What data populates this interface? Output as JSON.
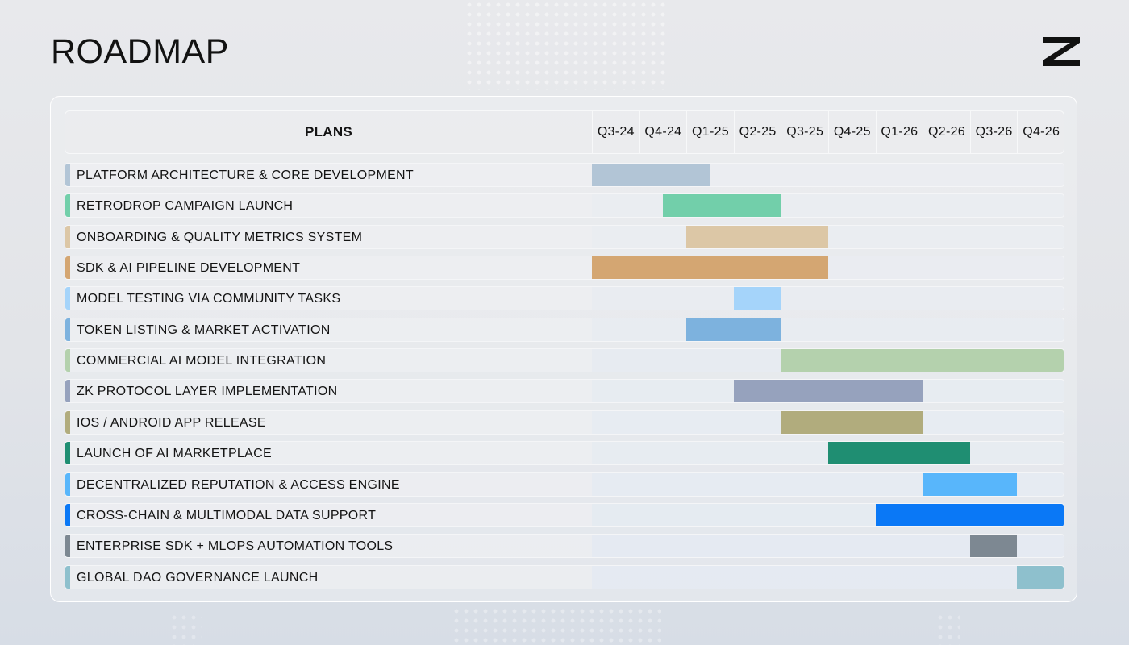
{
  "page": {
    "title": "ROADMAP"
  },
  "logo": {
    "icon": "z-logo-icon"
  },
  "chart_data": {
    "type": "gantt",
    "header": "PLANS",
    "quarters": [
      "Q3-24",
      "Q4-24",
      "Q1-25",
      "Q2-25",
      "Q3-25",
      "Q4-25",
      "Q1-26",
      "Q2-26",
      "Q3-26",
      "Q4-26"
    ],
    "tasks": [
      {
        "label": "PLATFORM ARCHITECTURE & CORE DEVELOPMENT",
        "start": 0,
        "end": 2.5,
        "color": "#b2c5d6"
      },
      {
        "label": "RETRODROP CAMPAIGN LAUNCH",
        "start": 1.5,
        "end": 4,
        "color": "#72cfaa"
      },
      {
        "label": "ONBOARDING & QUALITY METRICS SYSTEM",
        "start": 2,
        "end": 5,
        "color": "#dcc7a6"
      },
      {
        "label": "SDK & AI PIPELINE DEVELOPMENT",
        "start": 0,
        "end": 5,
        "color": "#d4a672"
      },
      {
        "label": "MODEL TESTING VIA COMMUNITY TASKS",
        "start": 3,
        "end": 4,
        "color": "#a5d4fa"
      },
      {
        "label": "TOKEN LISTING & MARKET ACTIVATION",
        "start": 2,
        "end": 4,
        "color": "#7db2de"
      },
      {
        "label": "COMMERCIAL AI MODEL INTEGRATION",
        "start": 4,
        "end": 10,
        "color": "#b4d1ad"
      },
      {
        "label": "ZK PROTOCOL LAYER IMPLEMENTATION",
        "start": 3,
        "end": 7,
        "color": "#96a2bd"
      },
      {
        "label": "IOS / ANDROID APP RELEASE",
        "start": 4,
        "end": 7,
        "color": "#b1ac7d"
      },
      {
        "label": "LAUNCH OF AI MARKETPLACE",
        "start": 5,
        "end": 8,
        "color": "#1f8e72"
      },
      {
        "label": "DECENTRALIZED REPUTATION & ACCESS ENGINE",
        "start": 7,
        "end": 9,
        "color": "#58b6fb"
      },
      {
        "label": "CROSS-CHAIN & MULTIMODAL DATA SUPPORT",
        "start": 6,
        "end": 10,
        "color": "#0a78f6"
      },
      {
        "label": "ENTERPRISE SDK + MLOPS AUTOMATION TOOLS",
        "start": 8,
        "end": 9,
        "color": "#7d8892"
      },
      {
        "label": "GLOBAL DAO GOVERNANCE LAUNCH",
        "start": 9,
        "end": 10,
        "color": "#8ec0cd"
      }
    ]
  }
}
